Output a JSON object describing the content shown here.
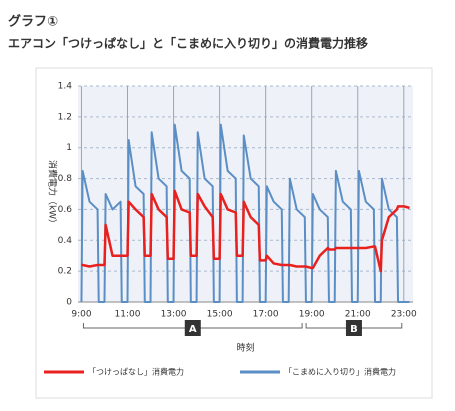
{
  "chart_data": {
    "type": "line",
    "title": "グラフ①",
    "subtitle": "エアコン「つけっぱなし」と「こまめに入り切り」の消費電力推移",
    "ylabel": "消費電力（kW）",
    "xlabel": "時刻",
    "x": [
      9,
      9.05,
      9.35,
      9.7,
      9.75,
      10,
      10.05,
      10.35,
      10.7,
      10.75,
      11,
      11.05,
      11.35,
      11.7,
      11.75,
      12,
      12.05,
      12.35,
      12.7,
      12.75,
      13,
      13.05,
      13.35,
      13.7,
      13.75,
      14,
      14.05,
      14.35,
      14.7,
      14.75,
      15,
      15.05,
      15.35,
      15.7,
      15.75,
      16,
      16.05,
      16.35,
      16.7,
      16.75,
      17,
      17.05,
      17.35,
      17.7,
      17.75,
      18,
      18.05,
      18.35,
      18.7,
      18.75,
      19,
      19.05,
      19.35,
      19.7,
      19.75,
      20,
      20.05,
      20.35,
      20.7,
      20.75,
      21,
      21.05,
      21.35,
      21.7,
      21.75,
      22,
      22.05,
      22.35,
      22.7,
      22.75,
      23,
      23.25
    ],
    "series": [
      {
        "name": "「つけっぱなし」消費電力",
        "color": "#e8211f",
        "values": [
          0.24,
          0.24,
          0.23,
          0.24,
          0.24,
          0.24,
          0.5,
          0.3,
          0.3,
          0.3,
          0.3,
          0.65,
          0.6,
          0.55,
          0.3,
          0.3,
          0.7,
          0.6,
          0.55,
          0.28,
          0.28,
          0.72,
          0.6,
          0.58,
          0.3,
          0.3,
          0.7,
          0.62,
          0.55,
          0.28,
          0.28,
          0.7,
          0.6,
          0.58,
          0.3,
          0.3,
          0.65,
          0.55,
          0.5,
          0.27,
          0.27,
          0.3,
          0.25,
          0.24,
          0.24,
          0.24,
          0.24,
          0.23,
          0.23,
          0.23,
          0.22,
          0.22,
          0.3,
          0.35,
          0.34,
          0.34,
          0.35,
          0.35,
          0.35,
          0.35,
          0.35,
          0.35,
          0.35,
          0.36,
          0.36,
          0.2,
          0.4,
          0.55,
          0.6,
          0.62,
          0.62,
          0.61
        ]
      },
      {
        "name": "「こまめに入り切り」消費電力",
        "color": "#5b8ec4",
        "values": [
          0,
          0.85,
          0.65,
          0.6,
          0,
          0,
          0.7,
          0.6,
          0.65,
          0,
          0,
          1.05,
          0.75,
          0.7,
          0,
          0,
          1.1,
          0.8,
          0.75,
          0,
          0,
          1.15,
          0.85,
          0.8,
          0,
          0,
          1.1,
          0.8,
          0.75,
          0,
          0,
          1.15,
          0.85,
          0.8,
          0,
          0,
          1.08,
          0.8,
          0.75,
          0,
          0,
          0.75,
          0.65,
          0.6,
          0,
          0,
          0.8,
          0.6,
          0.55,
          0,
          0,
          0.7,
          0.6,
          0.55,
          0,
          0,
          0.85,
          0.65,
          0.6,
          0,
          0,
          0.85,
          0.65,
          0.6,
          0,
          0,
          0.8,
          0.6,
          0.55,
          0,
          0,
          0
        ]
      }
    ],
    "xlim": [
      8.85,
      23.4
    ],
    "ylim": [
      0,
      1.4
    ],
    "xticks": [
      {
        "value": 9,
        "label": "9:00"
      },
      {
        "value": 11,
        "label": "11:00"
      },
      {
        "value": 13,
        "label": "13:00"
      },
      {
        "value": 15,
        "label": "15:00"
      },
      {
        "value": 17,
        "label": "17:00"
      },
      {
        "value": 19,
        "label": "19:00"
      },
      {
        "value": 21,
        "label": "21:00"
      },
      {
        "value": 23,
        "label": "23:00"
      }
    ],
    "yticks": [
      0,
      0.2,
      0.4,
      0.6,
      0.8,
      1,
      1.2,
      1.4
    ],
    "annotations": [
      {
        "text": "A",
        "x": [
          9,
          18.67
        ]
      },
      {
        "text": "B",
        "x": [
          18.67,
          23
        ]
      }
    ],
    "grid": true,
    "legend": "bottom"
  }
}
